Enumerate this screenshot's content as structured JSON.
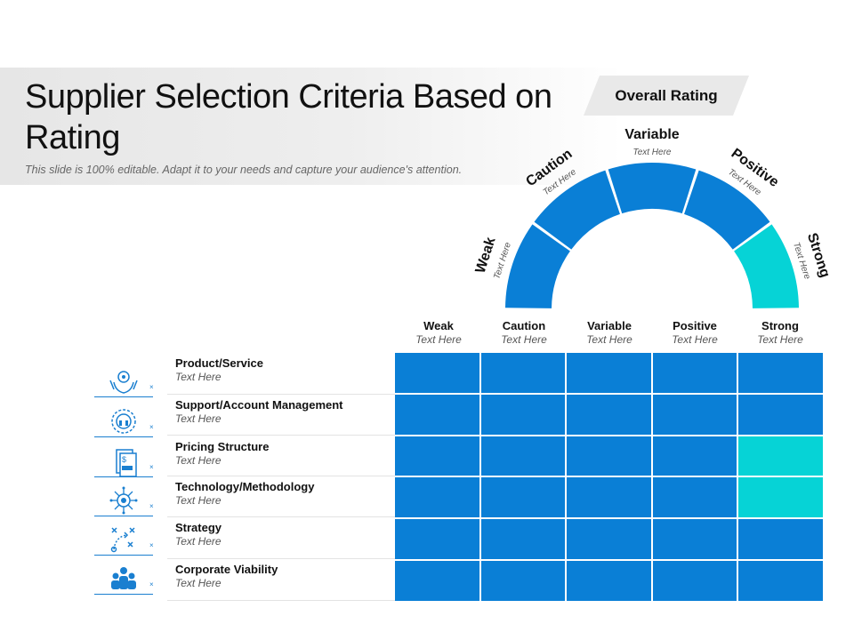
{
  "title": "Supplier Selection Criteria Based on Rating",
  "subtitle": "This slide is 100% editable. Adapt it to your needs and capture your audience's attention.",
  "overall_rating": "Overall Rating",
  "colors": {
    "blue": "#0a7fd6",
    "cyan": "#06d3d6",
    "icon_blue": "#1a7fd0"
  },
  "gauge_segments": [
    {
      "label": "Weak",
      "sub": "Text Here",
      "color": "#0a7fd6"
    },
    {
      "label": "Caution",
      "sub": "Text Here",
      "color": "#0a7fd6"
    },
    {
      "label": "Variable",
      "sub": "Text Here",
      "color": "#0a7fd6"
    },
    {
      "label": "Positive",
      "sub": "Text Here",
      "color": "#0a7fd6"
    },
    {
      "label": "Strong",
      "sub": "Text Here",
      "color": "#06d3d6"
    }
  ],
  "columns": [
    {
      "label": "Weak",
      "sub": "Text Here"
    },
    {
      "label": "Caution",
      "sub": "Text Here"
    },
    {
      "label": "Variable",
      "sub": "Text Here"
    },
    {
      "label": "Positive",
      "sub": "Text Here"
    },
    {
      "label": "Strong",
      "sub": "Text Here"
    }
  ],
  "rows": [
    {
      "label": "Product/Service",
      "sub": "Text Here",
      "icon": "hands-gear-icon",
      "rating": [
        "blue",
        "blue",
        "blue",
        "blue",
        "blue"
      ]
    },
    {
      "label": "Support/Account Management",
      "sub": "Text Here",
      "icon": "support-headset-icon",
      "rating": [
        "blue",
        "blue",
        "blue",
        "blue",
        "blue"
      ]
    },
    {
      "label": "Pricing Structure",
      "sub": "Text Here",
      "icon": "price-document-icon",
      "rating": [
        "blue",
        "blue",
        "blue",
        "blue",
        "cyan"
      ]
    },
    {
      "label": "Technology/Methodology",
      "sub": "Text Here",
      "icon": "circuit-chip-icon",
      "rating": [
        "blue",
        "blue",
        "blue",
        "blue",
        "cyan"
      ]
    },
    {
      "label": "Strategy",
      "sub": "Text Here",
      "icon": "strategy-plan-icon",
      "rating": [
        "blue",
        "blue",
        "blue",
        "blue",
        "blue"
      ]
    },
    {
      "label": "Corporate Viability",
      "sub": "Text Here",
      "icon": "team-group-icon",
      "rating": [
        "blue",
        "blue",
        "blue",
        "blue",
        "blue"
      ]
    }
  ]
}
